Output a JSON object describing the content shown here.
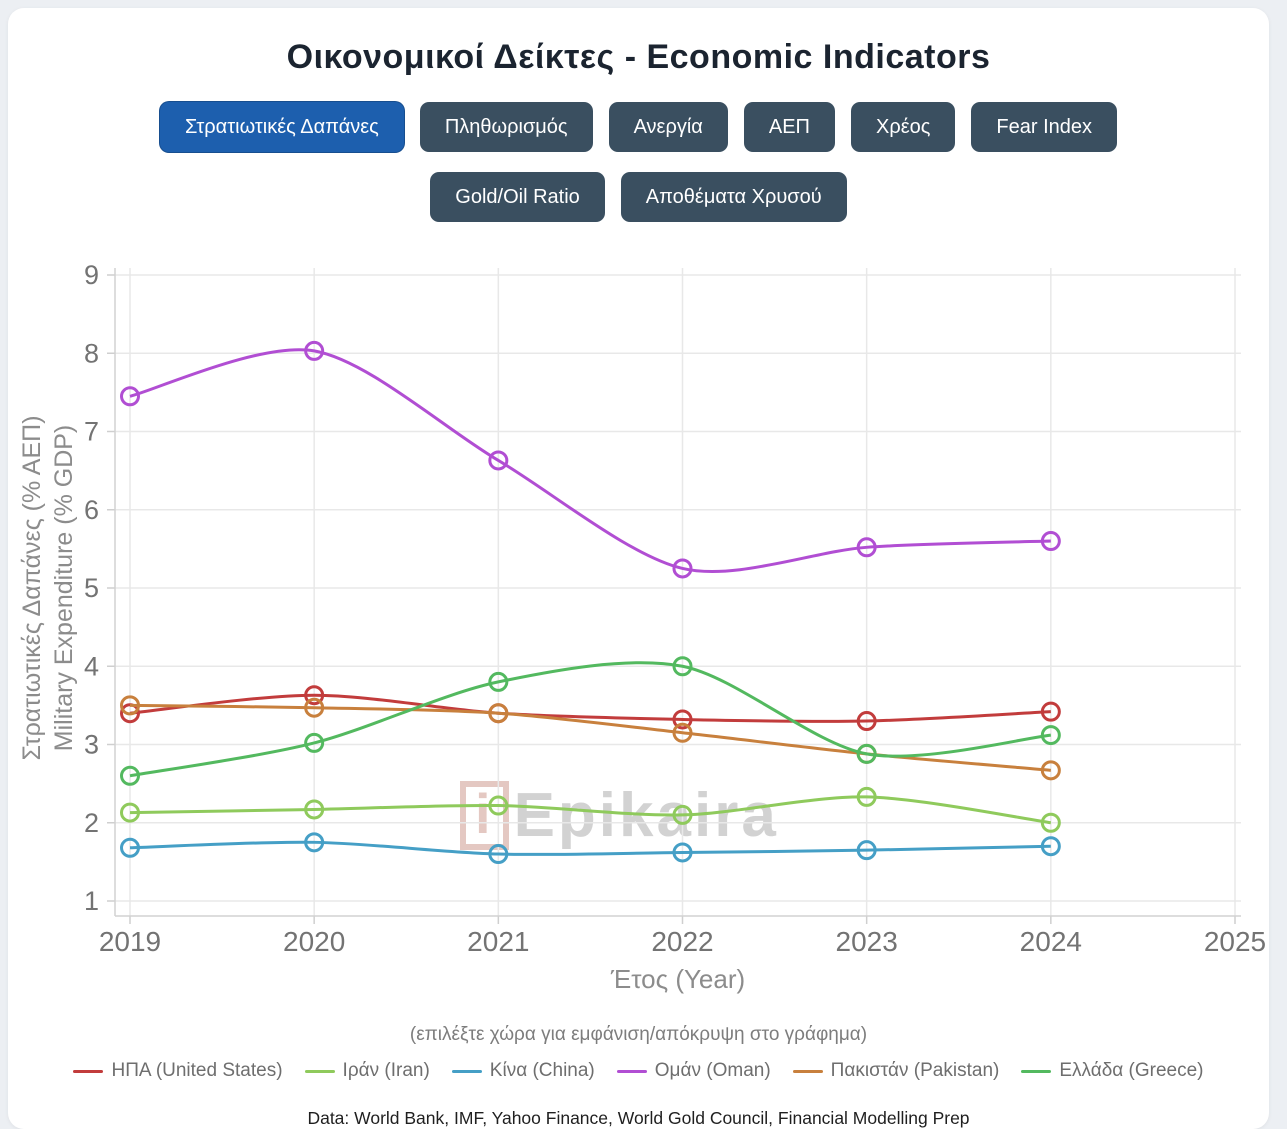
{
  "page": {
    "title": "Οικονομικοί Δείκτες - Economic Indicators",
    "watermark_i": "i",
    "watermark_rest": "Epikaira",
    "footer": "Data: World Bank, IMF, Yahoo Finance, World Gold Council, Financial Modelling Prep"
  },
  "tabs": {
    "row1": [
      "Στρατιωτικές Δαπάνες",
      "Πληθωρισμός",
      "Ανεργία",
      "ΑΕΠ",
      "Χρέος",
      "Fear Index"
    ],
    "row2": [
      "Gold/Oil Ratio",
      "Αποθέματα Χρυσού"
    ],
    "active": "Στρατιωτικές Δαπάνες",
    "active_color": "#1d5fae",
    "inactive_color": "#3a4f60"
  },
  "chart_data": {
    "type": "line",
    "x": [
      2019,
      2020,
      2021,
      2022,
      2023,
      2024
    ],
    "x_ticks": [
      2019,
      2020,
      2021,
      2022,
      2023,
      2024,
      2025
    ],
    "y_ticks": [
      1,
      2,
      3,
      4,
      5,
      6,
      7,
      8,
      9
    ],
    "xlim": [
      2019,
      2025
    ],
    "ylim": [
      1,
      9
    ],
    "grid": true,
    "legend_position": "bottom",
    "xlabel": "Έτος (Year)",
    "ylabel_line1": "Στρατιωτικές Δαπάνες (% ΑΕΠ)",
    "ylabel_line2": "Military Expenditure (% GDP)",
    "legend_note": "(επιλέξτε χώρα για εμφάνιση/απόκρυψη στο γράφημα)",
    "series": [
      {
        "name": "ΗΠΑ (United States)",
        "color": "#c23c3c",
        "values": [
          3.4,
          3.63,
          3.4,
          3.32,
          3.3,
          3.42
        ]
      },
      {
        "name": "Ιράν (Iran)",
        "color": "#8fca5c",
        "values": [
          2.13,
          2.17,
          2.22,
          2.1,
          2.33,
          2.0
        ]
      },
      {
        "name": "Κίνα (China)",
        "color": "#459fc6",
        "values": [
          1.68,
          1.75,
          1.6,
          1.62,
          1.65,
          1.7
        ]
      },
      {
        "name": "Ομάν (Oman)",
        "color": "#b14ed3",
        "values": [
          7.45,
          8.03,
          6.63,
          5.25,
          5.52,
          5.6
        ]
      },
      {
        "name": "Πακιστάν (Pakistan)",
        "color": "#c8803d",
        "values": [
          3.5,
          3.47,
          3.4,
          3.15,
          2.88,
          2.67
        ]
      },
      {
        "name": "Ελλάδα (Greece)",
        "color": "#53b95f",
        "values": [
          2.6,
          3.02,
          3.8,
          4.0,
          2.88,
          3.12
        ]
      }
    ]
  }
}
